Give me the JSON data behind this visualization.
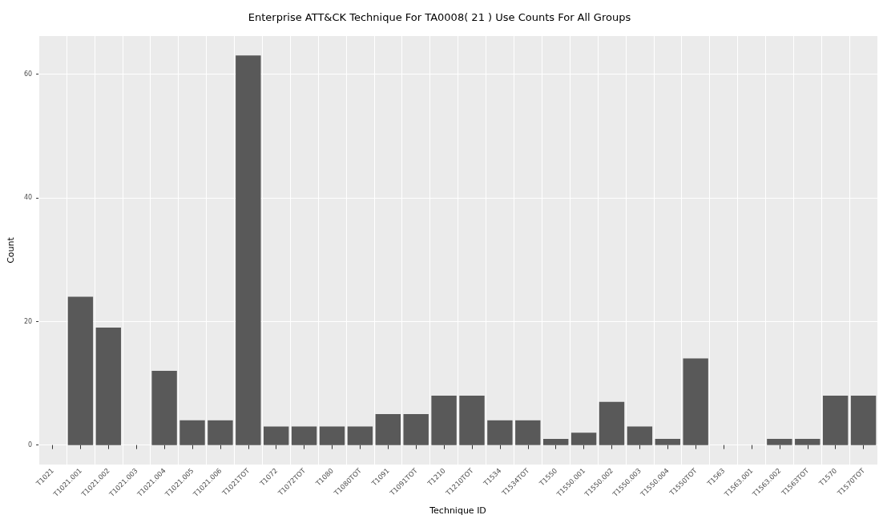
{
  "chart_data": {
    "type": "bar",
    "title": "Enterprise ATT&CK Technique For TA0008( 21 ) Use Counts For All Groups",
    "xlabel": "Technique ID",
    "ylabel": "Count",
    "categories": [
      "T1021",
      "T1021.001",
      "T1021.002",
      "T1021.003",
      "T1021.004",
      "T1021.005",
      "T1021.006",
      "T1021TOT",
      "T1072",
      "T1072TOT",
      "T1080",
      "T1080TOT",
      "T1091",
      "T1091TOT",
      "T1210",
      "T1210TOT",
      "T1534",
      "T1534TOT",
      "T1550",
      "T1550.001",
      "T1550.002",
      "T1550.003",
      "T1550.004",
      "T1550TOT",
      "T1563",
      "T1563.001",
      "T1563.002",
      "T1563TOT",
      "T1570",
      "T1570TOT"
    ],
    "values": [
      0,
      24,
      19,
      0,
      12,
      4,
      4,
      63,
      3,
      3,
      3,
      3,
      5,
      5,
      8,
      8,
      4,
      4,
      1,
      2,
      7,
      3,
      1,
      14,
      0,
      0,
      1,
      1,
      8,
      8
    ],
    "color": "#595959",
    "ylim": [
      -3.15,
      66.15
    ],
    "yticks": [
      0,
      20,
      40,
      60
    ],
    "grid": true
  }
}
